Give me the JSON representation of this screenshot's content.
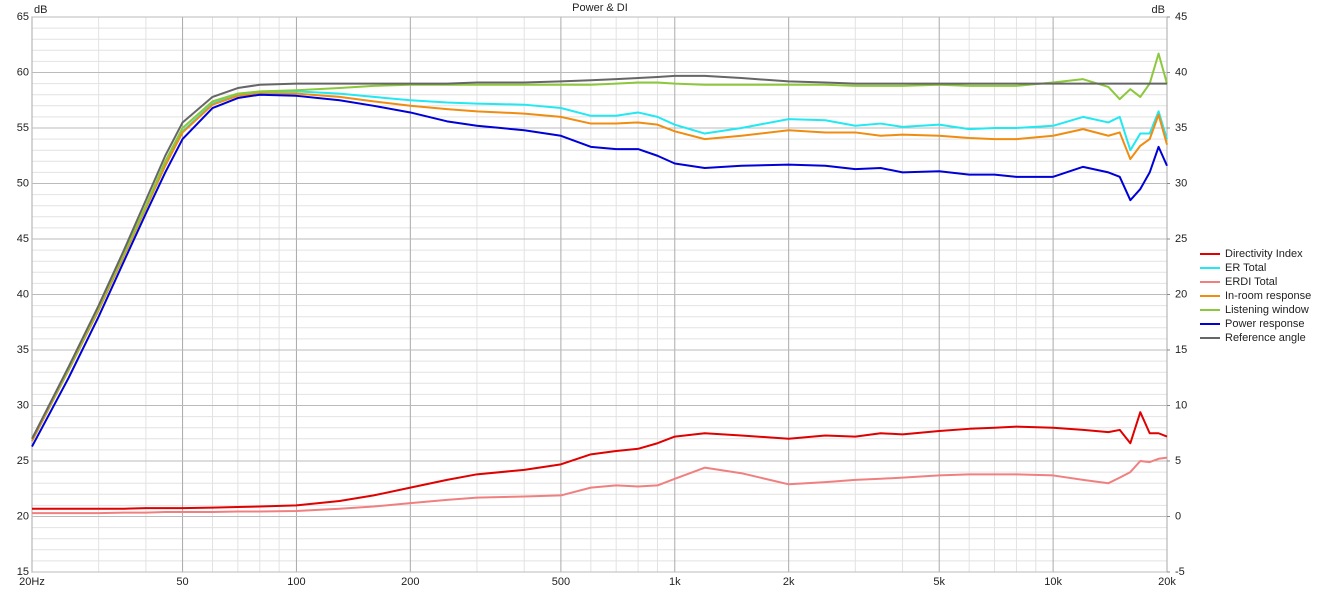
{
  "chart_data": {
    "type": "line",
    "title": "Power & DI",
    "y_label": "dB",
    "y2_label": "dB",
    "log_x": true,
    "grid": true,
    "xlim": [
      20,
      20000
    ],
    "xticks": [
      {
        "value": 20,
        "label": "20Hz"
      },
      50,
      100,
      200,
      500,
      {
        "value": 1000,
        "label": "1k"
      },
      {
        "value": 2000,
        "label": "2k"
      },
      {
        "value": 5000,
        "label": "5k"
      },
      {
        "value": 10000,
        "label": "10k"
      },
      {
        "value": 20000,
        "label": "20k"
      }
    ],
    "x_minor_ticks": [
      30,
      40,
      60,
      70,
      80,
      90,
      300,
      400,
      600,
      700,
      800,
      900,
      3000,
      4000,
      6000,
      7000,
      8000,
      9000
    ],
    "ylim": [
      15,
      65
    ],
    "yticks": [
      15,
      20,
      25,
      30,
      35,
      40,
      45,
      50,
      55,
      60,
      65
    ],
    "y_minor_ticks": [
      16,
      17,
      18,
      19,
      21,
      22,
      23,
      24,
      26,
      27,
      28,
      29,
      31,
      32,
      33,
      34,
      36,
      37,
      38,
      39,
      41,
      42,
      43,
      44,
      46,
      47,
      48,
      49,
      51,
      52,
      53,
      54,
      56,
      57,
      58,
      59,
      61,
      62,
      63,
      64
    ],
    "y2lim": [
      -5,
      45
    ],
    "y2ticks": [
      -5,
      0,
      5,
      10,
      15,
      20,
      25,
      30,
      35,
      40,
      45
    ],
    "x": [
      20,
      25,
      30,
      35,
      40,
      45,
      50,
      60,
      70,
      80,
      100,
      130,
      160,
      200,
      250,
      300,
      400,
      500,
      600,
      700,
      800,
      900,
      1000,
      1200,
      1500,
      2000,
      2500,
      3000,
      3500,
      4000,
      5000,
      6000,
      7000,
      8000,
      10000,
      12000,
      14000,
      15000,
      16000,
      17000,
      18000,
      19000,
      20000
    ],
    "series": [
      {
        "name": "Directivity Index",
        "color": "#e00000",
        "axis": "y2",
        "values": [
          0.7,
          0.7,
          0.7,
          0.7,
          0.75,
          0.75,
          0.75,
          0.8,
          0.85,
          0.9,
          1.0,
          1.4,
          1.9,
          2.6,
          3.3,
          3.8,
          4.2,
          4.7,
          5.6,
          5.9,
          6.1,
          6.6,
          7.2,
          7.5,
          7.3,
          7.0,
          7.3,
          7.2,
          7.5,
          7.4,
          7.7,
          7.9,
          8.0,
          8.1,
          8.0,
          7.8,
          7.6,
          7.8,
          6.6,
          9.4,
          7.5,
          7.5,
          7.2
        ]
      },
      {
        "name": "ER Total",
        "color": "#22e8f2",
        "values": [
          26.8,
          33.2,
          38.6,
          43.5,
          47.8,
          51.6,
          54.7,
          57.2,
          58.0,
          58.2,
          58.3,
          58.1,
          57.8,
          57.5,
          57.3,
          57.2,
          57.1,
          56.8,
          56.1,
          56.1,
          56.4,
          56.0,
          55.3,
          54.5,
          55.0,
          55.8,
          55.7,
          55.2,
          55.4,
          55.1,
          55.3,
          54.9,
          55.0,
          55.0,
          55.2,
          56.0,
          55.5,
          56.0,
          53.0,
          54.5,
          54.5,
          56.5,
          54.0
        ]
      },
      {
        "name": "ERDI Total",
        "color": "#f08080",
        "axis": "y2",
        "values": [
          0.3,
          0.3,
          0.3,
          0.35,
          0.35,
          0.4,
          0.4,
          0.4,
          0.45,
          0.45,
          0.5,
          0.7,
          0.9,
          1.2,
          1.5,
          1.7,
          1.8,
          1.9,
          2.6,
          2.8,
          2.7,
          2.8,
          3.4,
          4.4,
          3.9,
          2.9,
          3.1,
          3.3,
          3.4,
          3.5,
          3.7,
          3.8,
          3.8,
          3.8,
          3.7,
          3.3,
          3.0,
          3.5,
          4.0,
          5.0,
          4.9,
          5.2,
          5.3
        ]
      },
      {
        "name": "In-room response",
        "color": "#f08c10",
        "values": [
          26.8,
          33.2,
          38.6,
          43.5,
          47.8,
          51.6,
          54.6,
          57.1,
          57.9,
          58.1,
          58.1,
          57.8,
          57.4,
          57.0,
          56.7,
          56.5,
          56.3,
          56.0,
          55.4,
          55.4,
          55.5,
          55.3,
          54.7,
          54.0,
          54.3,
          54.8,
          54.6,
          54.6,
          54.3,
          54.4,
          54.3,
          54.1,
          54.0,
          54.0,
          54.3,
          54.9,
          54.3,
          54.6,
          52.2,
          53.4,
          54.0,
          56.2,
          53.5
        ]
      },
      {
        "name": "Listening window",
        "color": "#8cc83c",
        "values": [
          27.0,
          33.3,
          38.8,
          43.7,
          48.0,
          52.0,
          55.0,
          57.4,
          58.1,
          58.3,
          58.4,
          58.6,
          58.8,
          58.9,
          58.9,
          58.9,
          58.9,
          58.9,
          58.9,
          59.0,
          59.1,
          59.1,
          59.0,
          58.9,
          58.9,
          58.9,
          58.9,
          58.8,
          58.8,
          58.8,
          58.9,
          58.8,
          58.8,
          58.8,
          59.1,
          59.4,
          58.7,
          57.6,
          58.5,
          57.8,
          59.0,
          61.7,
          59.0
        ]
      },
      {
        "name": "Power response",
        "color": "#0000d8",
        "values": [
          26.3,
          32.5,
          38.0,
          43.0,
          47.3,
          51.0,
          54.0,
          56.8,
          57.7,
          58.0,
          57.9,
          57.5,
          57.0,
          56.4,
          55.6,
          55.2,
          54.8,
          54.3,
          53.3,
          53.1,
          53.1,
          52.5,
          51.8,
          51.4,
          51.6,
          51.7,
          51.6,
          51.3,
          51.4,
          51.0,
          51.1,
          50.8,
          50.8,
          50.6,
          50.6,
          51.5,
          51.0,
          50.6,
          48.5,
          49.5,
          51.0,
          53.3,
          51.6
        ]
      },
      {
        "name": "Reference angle",
        "color": "#666666",
        "values": [
          27.0,
          33.5,
          39.0,
          44.0,
          48.5,
          52.5,
          55.5,
          57.8,
          58.6,
          58.9,
          59.0,
          59.0,
          59.0,
          59.0,
          59.0,
          59.1,
          59.1,
          59.2,
          59.3,
          59.4,
          59.5,
          59.6,
          59.7,
          59.7,
          59.5,
          59.2,
          59.1,
          59.0,
          59.0,
          59.0,
          59.0,
          59.0,
          59.0,
          59.0,
          59.0,
          59.0,
          59.0,
          59.0,
          59.0,
          59.0,
          59.0,
          59.0,
          59.0
        ]
      }
    ]
  }
}
